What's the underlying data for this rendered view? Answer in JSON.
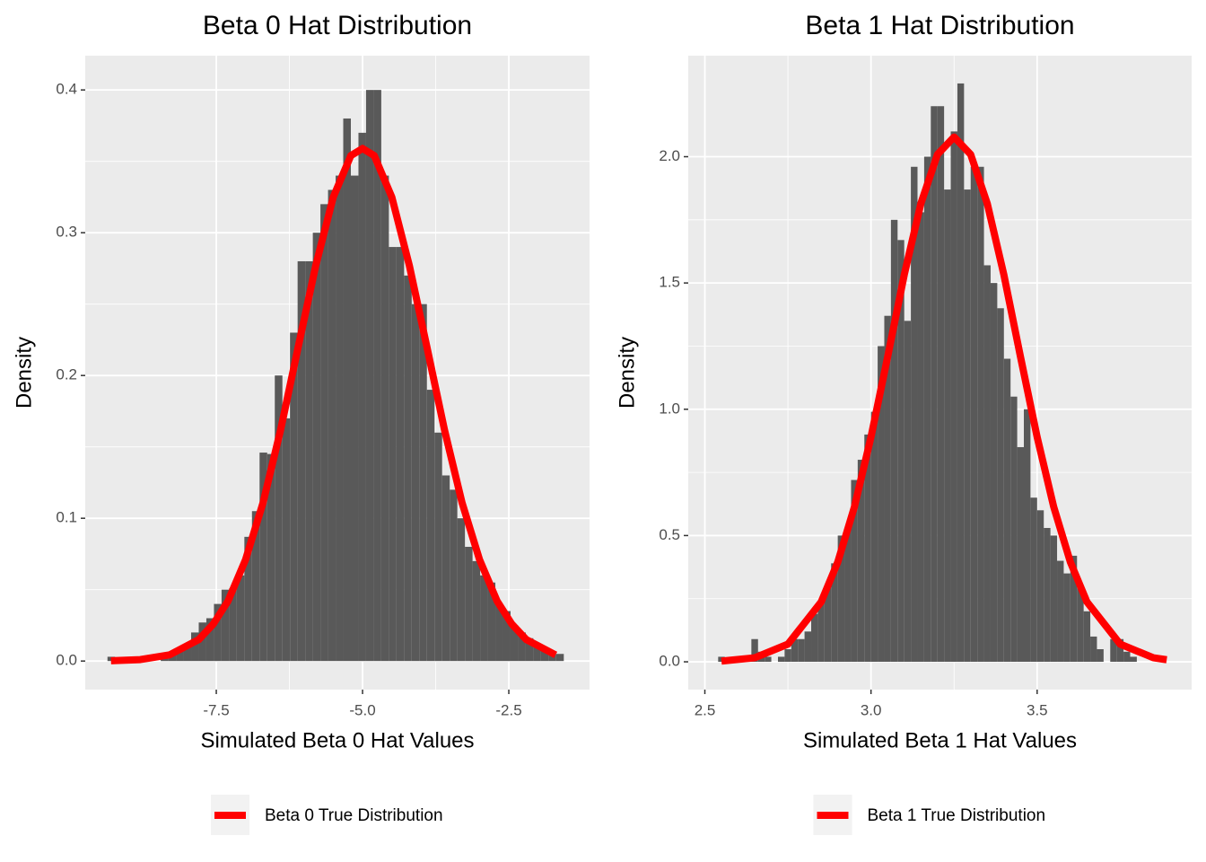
{
  "chart_data": [
    {
      "type": "histogram",
      "title": "Beta 0 Hat Distribution",
      "xlabel": "Simulated Beta 0 Hat Values",
      "ylabel": "Density",
      "bins": [
        -9.36,
        -9.23,
        -9.1,
        -8.97,
        -8.84,
        -8.71,
        -8.58,
        -8.45,
        -8.32,
        -8.19,
        -8.06,
        -7.93,
        -7.8,
        -7.67,
        -7.54,
        -7.41,
        -7.28,
        -7.15,
        -7.02,
        -6.89,
        -6.76,
        -6.63,
        -6.5,
        -6.37,
        -6.24,
        -6.11,
        -5.98,
        -5.85,
        -5.72,
        -5.59,
        -5.46,
        -5.33,
        -5.2,
        -5.07,
        -4.94,
        -4.81,
        -4.68,
        -4.55,
        -4.42,
        -4.29,
        -4.16,
        -4.03,
        -3.9,
        -3.77,
        -3.64,
        -3.51,
        -3.38,
        -3.25,
        -3.12,
        -2.99,
        -2.86,
        -2.73,
        -2.6,
        -2.47,
        -2.34,
        -2.21,
        -2.08,
        -1.95,
        -1.82,
        -1.69,
        -1.56
      ],
      "values": [
        0.003,
        0,
        0,
        0,
        0,
        0,
        0,
        0.003,
        0.006,
        0.009,
        0.012,
        0.02,
        0.027,
        0.03,
        0.04,
        0.05,
        0.051,
        0.06,
        0.087,
        0.105,
        0.146,
        0.145,
        0.2,
        0.17,
        0.23,
        0.28,
        0.28,
        0.3,
        0.32,
        0.33,
        0.34,
        0.38,
        0.34,
        0.37,
        0.4,
        0.4,
        0.34,
        0.29,
        0.29,
        0.27,
        0.25,
        0.25,
        0.19,
        0.16,
        0.13,
        0.12,
        0.1,
        0.08,
        0.07,
        0.06,
        0.055,
        0.04,
        0.035,
        0.025,
        0.02,
        0.016,
        0.01,
        0.007,
        0.005,
        0.005
      ],
      "color": "#595959",
      "series": [
        {
          "name": "Beta 0 True Distribution",
          "type": "line",
          "color": "#ff0000",
          "x": [
            -9.3,
            -8.8,
            -8.3,
            -7.8,
            -7.55,
            -7.3,
            -7.0,
            -6.7,
            -6.4,
            -6.1,
            -5.8,
            -5.5,
            -5.2,
            -5.0,
            -4.8,
            -4.5,
            -4.2,
            -3.9,
            -3.6,
            -3.3,
            -3.0,
            -2.7,
            -2.45,
            -2.2,
            -1.7
          ],
          "values": [
            0.0002,
            0.001,
            0.0043,
            0.015,
            0.026,
            0.042,
            0.071,
            0.111,
            0.162,
            0.22,
            0.277,
            0.325,
            0.354,
            0.359,
            0.354,
            0.325,
            0.277,
            0.22,
            0.162,
            0.111,
            0.071,
            0.042,
            0.026,
            0.015,
            0.0043
          ]
        }
      ],
      "xlim": [
        -9.74,
        -1.12
      ],
      "ylim": [
        -0.02,
        0.424
      ],
      "xticks": [
        -7.5,
        {
          "value": -5.0,
          "label": "-5.0"
        },
        -2.5
      ],
      "yticks": [
        {
          "value": 0,
          "label": "0.0"
        },
        0.1,
        0.2,
        0.3,
        0.4
      ],
      "grid": true,
      "legend": "bottom"
    },
    {
      "type": "histogram",
      "title": "Beta 1 Hat Distribution",
      "xlabel": "Simulated Beta 1 Hat Values",
      "ylabel": "Density",
      "bins": [
        2.54,
        2.56,
        2.58,
        2.6,
        2.62,
        2.64,
        2.66,
        2.68,
        2.7,
        2.72,
        2.74,
        2.76,
        2.78,
        2.8,
        2.82,
        2.84,
        2.86,
        2.88,
        2.9,
        2.92,
        2.94,
        2.96,
        2.98,
        3.0,
        3.02,
        3.04,
        3.06,
        3.08,
        3.1,
        3.12,
        3.14,
        3.16,
        3.18,
        3.2,
        3.22,
        3.24,
        3.26,
        3.28,
        3.3,
        3.32,
        3.34,
        3.36,
        3.38,
        3.4,
        3.42,
        3.44,
        3.46,
        3.48,
        3.5,
        3.52,
        3.54,
        3.56,
        3.58,
        3.6,
        3.62,
        3.64,
        3.66,
        3.68,
        3.7,
        3.72,
        3.74,
        3.76,
        3.78,
        3.8
      ],
      "values": [
        0.02,
        0,
        0,
        0,
        0.02,
        0.09,
        0.04,
        0.02,
        0,
        0.02,
        0.05,
        0.09,
        0.09,
        0.12,
        0.19,
        0.24,
        0.3,
        0.39,
        0.5,
        0.53,
        0.72,
        0.8,
        0.9,
        0.99,
        1.25,
        1.37,
        1.75,
        1.67,
        1.35,
        1.96,
        1.78,
        2.0,
        2.2,
        2.2,
        1.87,
        2.1,
        2.29,
        1.87,
        1.96,
        1.96,
        1.57,
        1.5,
        1.4,
        1.2,
        1.05,
        0.85,
        1.0,
        0.65,
        0.6,
        0.53,
        0.5,
        0.4,
        0.35,
        0.42,
        0.3,
        0.2,
        0.1,
        0.05,
        0,
        0.09,
        0.09,
        0.04,
        0.02
      ],
      "color": "#595959",
      "series": [
        {
          "name": "Beta 1 True Distribution",
          "type": "line",
          "color": "#ff0000",
          "x": [
            2.55,
            2.65,
            2.75,
            2.85,
            2.9,
            2.95,
            3.0,
            3.05,
            3.1,
            3.15,
            3.2,
            3.25,
            3.3,
            3.35,
            3.4,
            3.45,
            3.5,
            3.55,
            3.6,
            3.65,
            3.75,
            3.85,
            3.89
          ],
          "values": [
            0.003,
            0.016,
            0.07,
            0.237,
            0.395,
            0.613,
            0.89,
            1.207,
            1.532,
            1.814,
            2.009,
            2.078,
            2.009,
            1.814,
            1.532,
            1.207,
            0.89,
            0.613,
            0.395,
            0.237,
            0.07,
            0.016,
            0.0082
          ]
        }
      ],
      "xlim": [
        2.45,
        3.965
      ],
      "ylim": [
        -0.11,
        2.4
      ],
      "xticks": [
        2.5,
        {
          "value": 3.0,
          "label": "3.0"
        },
        3.5
      ],
      "yticks": [
        {
          "value": 0,
          "label": "0.0"
        },
        0.5,
        {
          "value": 1.0,
          "label": "1.0"
        },
        1.5,
        {
          "value": 2.0,
          "label": "2.0"
        }
      ],
      "grid": true,
      "legend": "bottom"
    }
  ]
}
